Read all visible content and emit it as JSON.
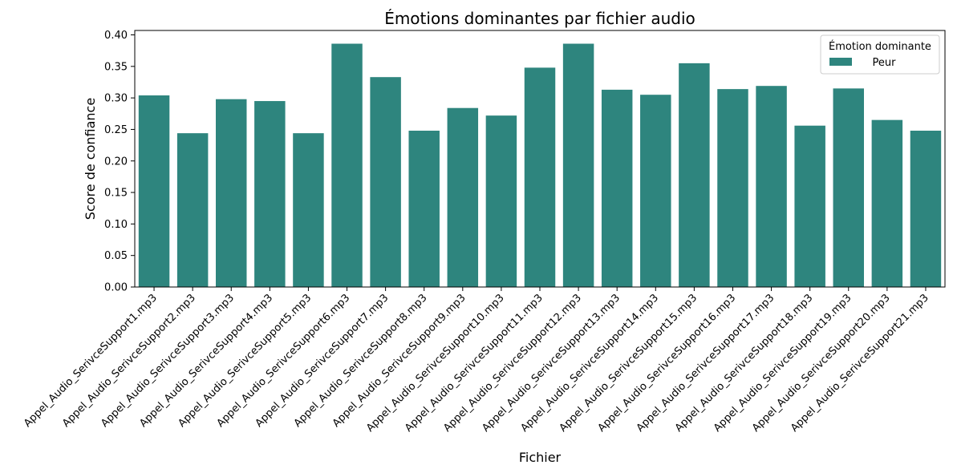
{
  "chart_data": {
    "type": "bar",
    "title": "Émotions dominantes par fichier audio",
    "xlabel": "Fichier",
    "ylabel": "Score de confiance",
    "ylim": [
      0,
      0.407
    ],
    "yticks": [
      "0.00",
      "0.05",
      "0.10",
      "0.15",
      "0.20",
      "0.25",
      "0.30",
      "0.35",
      "0.40"
    ],
    "bar_color": "#2e857e",
    "legend": {
      "title": "Émotion dominante",
      "entries": [
        {
          "label": "Peur",
          "color": "#2e857e"
        }
      ],
      "placement": "top-right"
    },
    "categories": [
      "Appel_Audio_SerivceSupport1.mp3",
      "Appel_Audio_SerivceSupport2.mp3",
      "Appel_Audio_SerivceSupport3.mp3",
      "Appel_Audio_SerivceSupport4.mp3",
      "Appel_Audio_SerivceSupport5.mp3",
      "Appel_Audio_SerivceSupport6.mp3",
      "Appel_Audio_SerivceSupport7.mp3",
      "Appel_Audio_SerivceSupport8.mp3",
      "Appel_Audio_SerivceSupport9.mp3",
      "Appel_Audio_SerivceSupport10.mp3",
      "Appel_Audio_SerivceSupport11.mp3",
      "Appel_Audio_SerivceSupport12.mp3",
      "Appel_Audio_SerivceSupport13.mp3",
      "Appel_Audio_SerivceSupport14.mp3",
      "Appel_Audio_SerivceSupport15.mp3",
      "Appel_Audio_SerivceSupport16.mp3",
      "Appel_Audio_SerivceSupport17.mp3",
      "Appel_Audio_SerivceSupport18.mp3",
      "Appel_Audio_SerivceSupport19.mp3",
      "Appel_Audio_SerivceSupport20.mp3",
      "Appel_Audio_SerivceSupport21.mp3"
    ],
    "values": [
      0.304,
      0.244,
      0.298,
      0.295,
      0.244,
      0.386,
      0.333,
      0.248,
      0.284,
      0.272,
      0.348,
      0.386,
      0.313,
      0.305,
      0.355,
      0.314,
      0.319,
      0.256,
      0.315,
      0.265,
      0.248
    ]
  }
}
